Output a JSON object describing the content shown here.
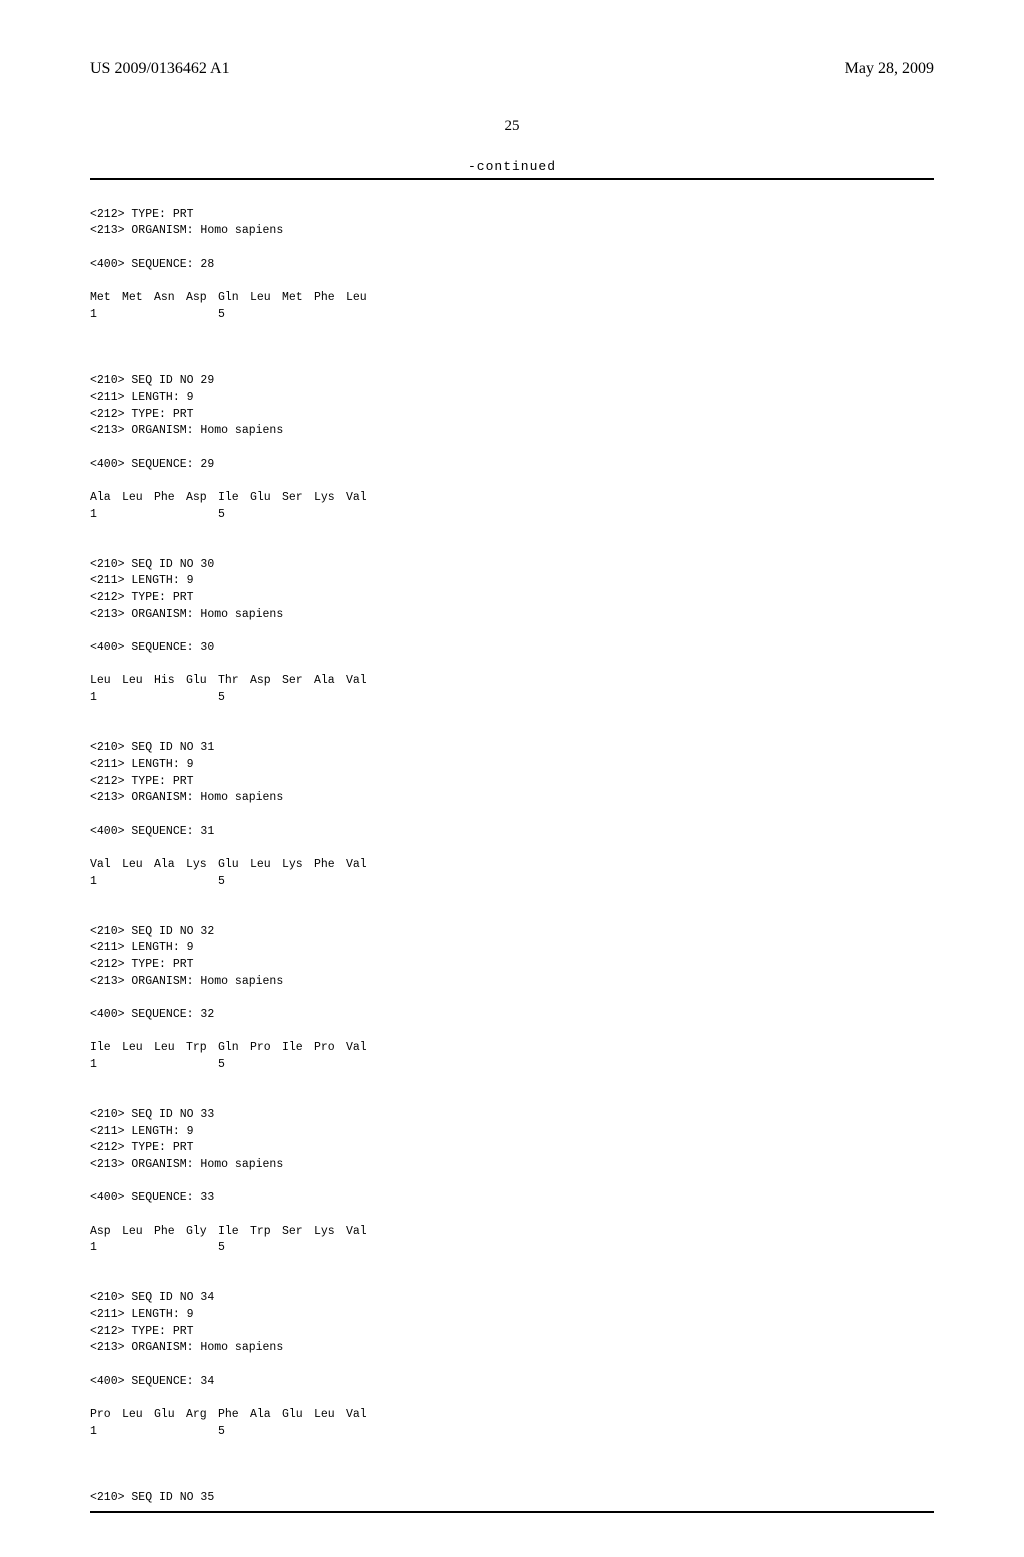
{
  "header": {
    "publication_number": "US 2009/0136462 A1",
    "publication_date": "May 28, 2009"
  },
  "page_number": "25",
  "continued_label": "-continued",
  "first_block": {
    "line1": "<212> TYPE: PRT",
    "line2": "<213> ORGANISM: Homo sapiens",
    "seq_line": "<400> SEQUENCE: 28",
    "aa": [
      "Met",
      "Met",
      "Asn",
      "Asp",
      "Gln",
      "Leu",
      "Met",
      "Phe",
      "Leu"
    ],
    "pos1": "1",
    "pos5": "5"
  },
  "blocks": [
    {
      "id": "29",
      "length": "9",
      "type": "PRT",
      "organism": "Homo sapiens",
      "aa": [
        "Ala",
        "Leu",
        "Phe",
        "Asp",
        "Ile",
        "Glu",
        "Ser",
        "Lys",
        "Val"
      ],
      "pos1": "1",
      "pos5": "5"
    },
    {
      "id": "30",
      "length": "9",
      "type": "PRT",
      "organism": "Homo sapiens",
      "aa": [
        "Leu",
        "Leu",
        "His",
        "Glu",
        "Thr",
        "Asp",
        "Ser",
        "Ala",
        "Val"
      ],
      "pos1": "1",
      "pos5": "5"
    },
    {
      "id": "31",
      "length": "9",
      "type": "PRT",
      "organism": "Homo sapiens",
      "aa": [
        "Val",
        "Leu",
        "Ala",
        "Lys",
        "Glu",
        "Leu",
        "Lys",
        "Phe",
        "Val"
      ],
      "pos1": "1",
      "pos5": "5"
    },
    {
      "id": "32",
      "length": "9",
      "type": "PRT",
      "organism": "Homo sapiens",
      "aa": [
        "Ile",
        "Leu",
        "Leu",
        "Trp",
        "Gln",
        "Pro",
        "Ile",
        "Pro",
        "Val"
      ],
      "pos1": "1",
      "pos5": "5"
    },
    {
      "id": "33",
      "length": "9",
      "type": "PRT",
      "organism": "Homo sapiens",
      "aa": [
        "Asp",
        "Leu",
        "Phe",
        "Gly",
        "Ile",
        "Trp",
        "Ser",
        "Lys",
        "Val"
      ],
      "pos1": "1",
      "pos5": "5"
    },
    {
      "id": "34",
      "length": "9",
      "type": "PRT",
      "organism": "Homo sapiens",
      "aa": [
        "Pro",
        "Leu",
        "Glu",
        "Arg",
        "Phe",
        "Ala",
        "Glu",
        "Leu",
        "Val"
      ],
      "pos1": "1",
      "pos5": "5"
    }
  ],
  "trailing": {
    "seq_id": "<210> SEQ ID NO 35"
  },
  "labels": {
    "seq_id_prefix": "<210> SEQ ID NO ",
    "length_prefix": "<211> LENGTH: ",
    "type_prefix": "<212> TYPE: ",
    "organism_prefix": "<213> ORGANISM: ",
    "sequence_prefix": "<400> SEQUENCE: "
  }
}
